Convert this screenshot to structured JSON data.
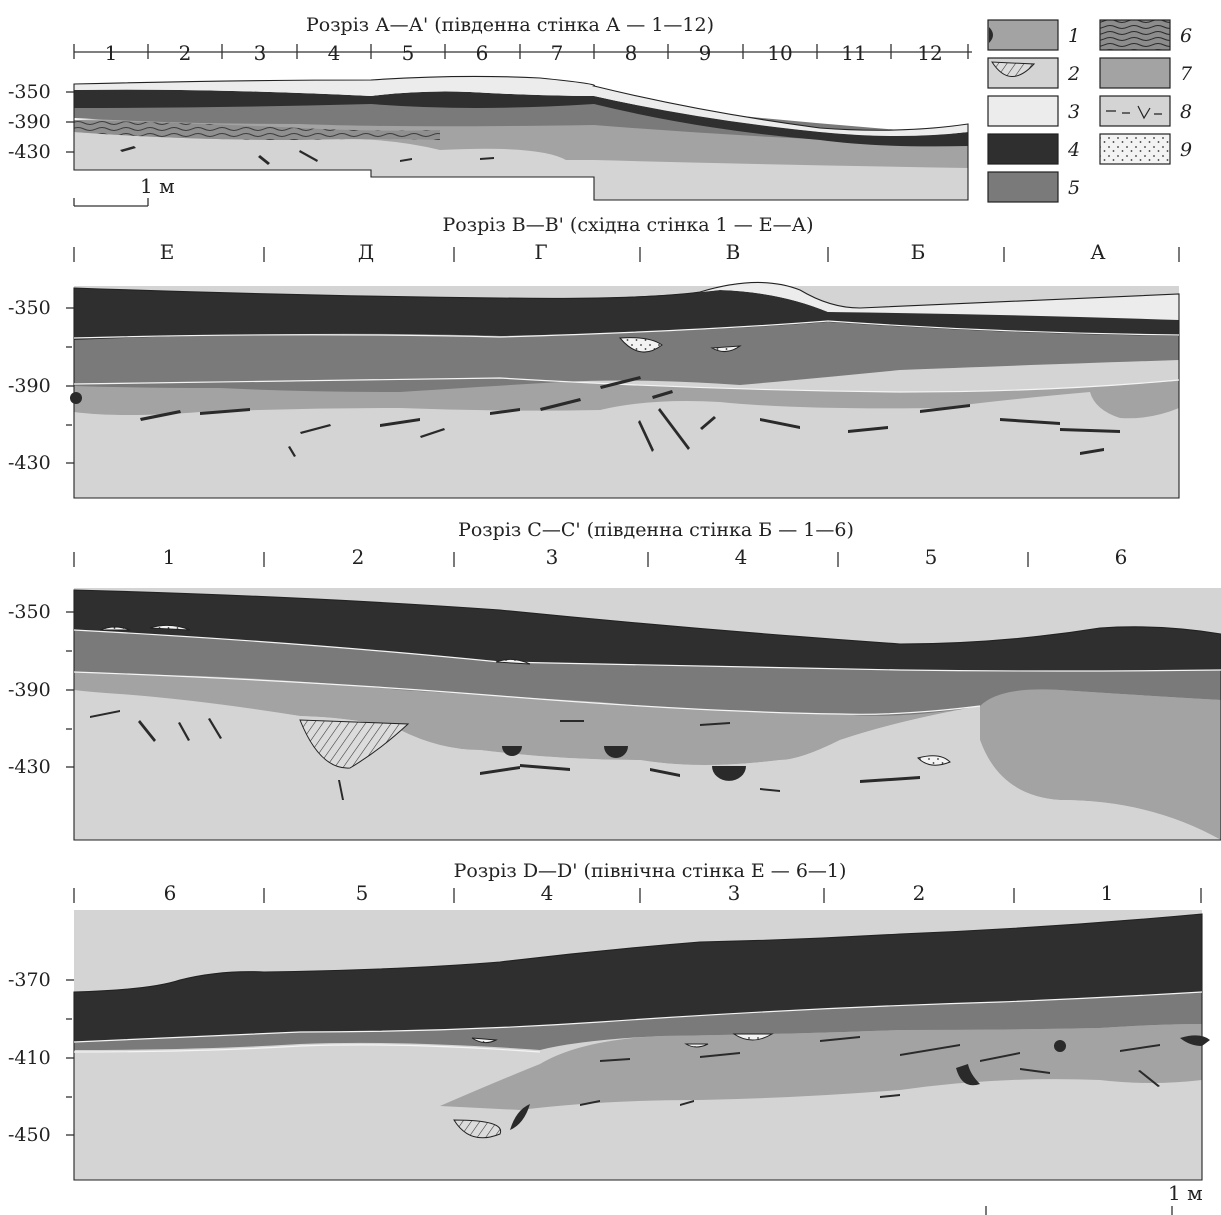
{
  "sections": [
    {
      "title": "Розріз А—А' (південна стінка А — 1—12)",
      "columns": [
        "1",
        "2",
        "3",
        "4",
        "5",
        "6",
        "7",
        "8",
        "9",
        "10",
        "11",
        "12"
      ],
      "depths": [
        "-350",
        "-390",
        "-430"
      ],
      "scale_label": "1 м"
    },
    {
      "title": "Розріз В—В' (східна стінка 1 — Е—А)",
      "columns": [
        "Е",
        "Д",
        "Г",
        "В",
        "Б",
        "А"
      ],
      "depths": [
        "-350",
        "-390",
        "-430"
      ]
    },
    {
      "title": "Розріз С—С' (південна стінка Б — 1—6)",
      "columns": [
        "1",
        "2",
        "3",
        "4",
        "5",
        "6"
      ],
      "depths": [
        "-350",
        "-390",
        "-430"
      ]
    },
    {
      "title": "Розріз D—D' (північна стінка Е — 6—1)",
      "columns": [
        "6",
        "5",
        "4",
        "3",
        "2",
        "1"
      ],
      "depths": [
        "-370",
        "-410",
        "-450"
      ],
      "scale_label": "1 м"
    }
  ],
  "legend": [
    {
      "num": "1",
      "swatch": "pit-fill",
      "color": "#a3a3a3"
    },
    {
      "num": "2",
      "swatch": "hatched-lens",
      "color": "#d4d4d4"
    },
    {
      "num": "3",
      "swatch": "plain",
      "color": "#ececec"
    },
    {
      "num": "4",
      "swatch": "plain",
      "color": "#2f2f2f"
    },
    {
      "num": "5",
      "swatch": "plain",
      "color": "#7a7a7a"
    },
    {
      "num": "6",
      "swatch": "wavy-lines",
      "color": "#5a5a5a"
    },
    {
      "num": "7",
      "swatch": "plain",
      "color": "#a3a3a3"
    },
    {
      "num": "8",
      "swatch": "dashes",
      "color": "#d4d4d4"
    },
    {
      "num": "9",
      "swatch": "dots",
      "color": "#f3f3f3"
    }
  ],
  "colors": {
    "topsoil": "#ececec",
    "black": "#2f2f2f",
    "dark_grey": "#7a7a7a",
    "mid_grey": "#a3a3a3",
    "light_grey": "#d4d4d4",
    "outline": "#222222"
  }
}
